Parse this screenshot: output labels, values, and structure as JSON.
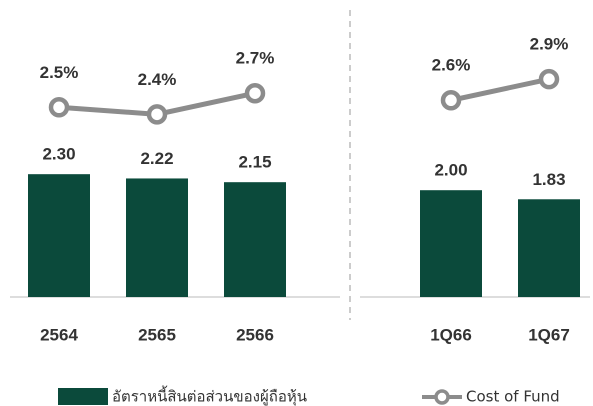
{
  "chart_data": {
    "type": "bar",
    "categories": [
      "2564",
      "2565",
      "2566",
      null,
      "1Q66",
      "1Q67"
    ],
    "ylim": [
      0,
      5
    ],
    "y2lim": [
      -0.2,
      3.6
    ],
    "series": [
      {
        "name": "อัตราหนี้สินต่อส่วนของผู้ถือหุ้น",
        "type": "bar",
        "color": "#0b4a3b",
        "values": [
          2.3,
          2.22,
          2.15,
          null,
          2.0,
          1.83
        ],
        "value_labels": [
          "2.30",
          "2.22",
          "2.15",
          null,
          "2.00",
          "1.83"
        ]
      },
      {
        "name": "Cost of Fund",
        "type": "line",
        "axis": "y2",
        "color": "#8c8c8c",
        "values": [
          2.5,
          2.4,
          2.7,
          null,
          2.6,
          2.9
        ],
        "value_labels": [
          "2.5%",
          "2.4%",
          "2.7%",
          null,
          "2.6%",
          "2.9%"
        ]
      }
    ]
  }
}
